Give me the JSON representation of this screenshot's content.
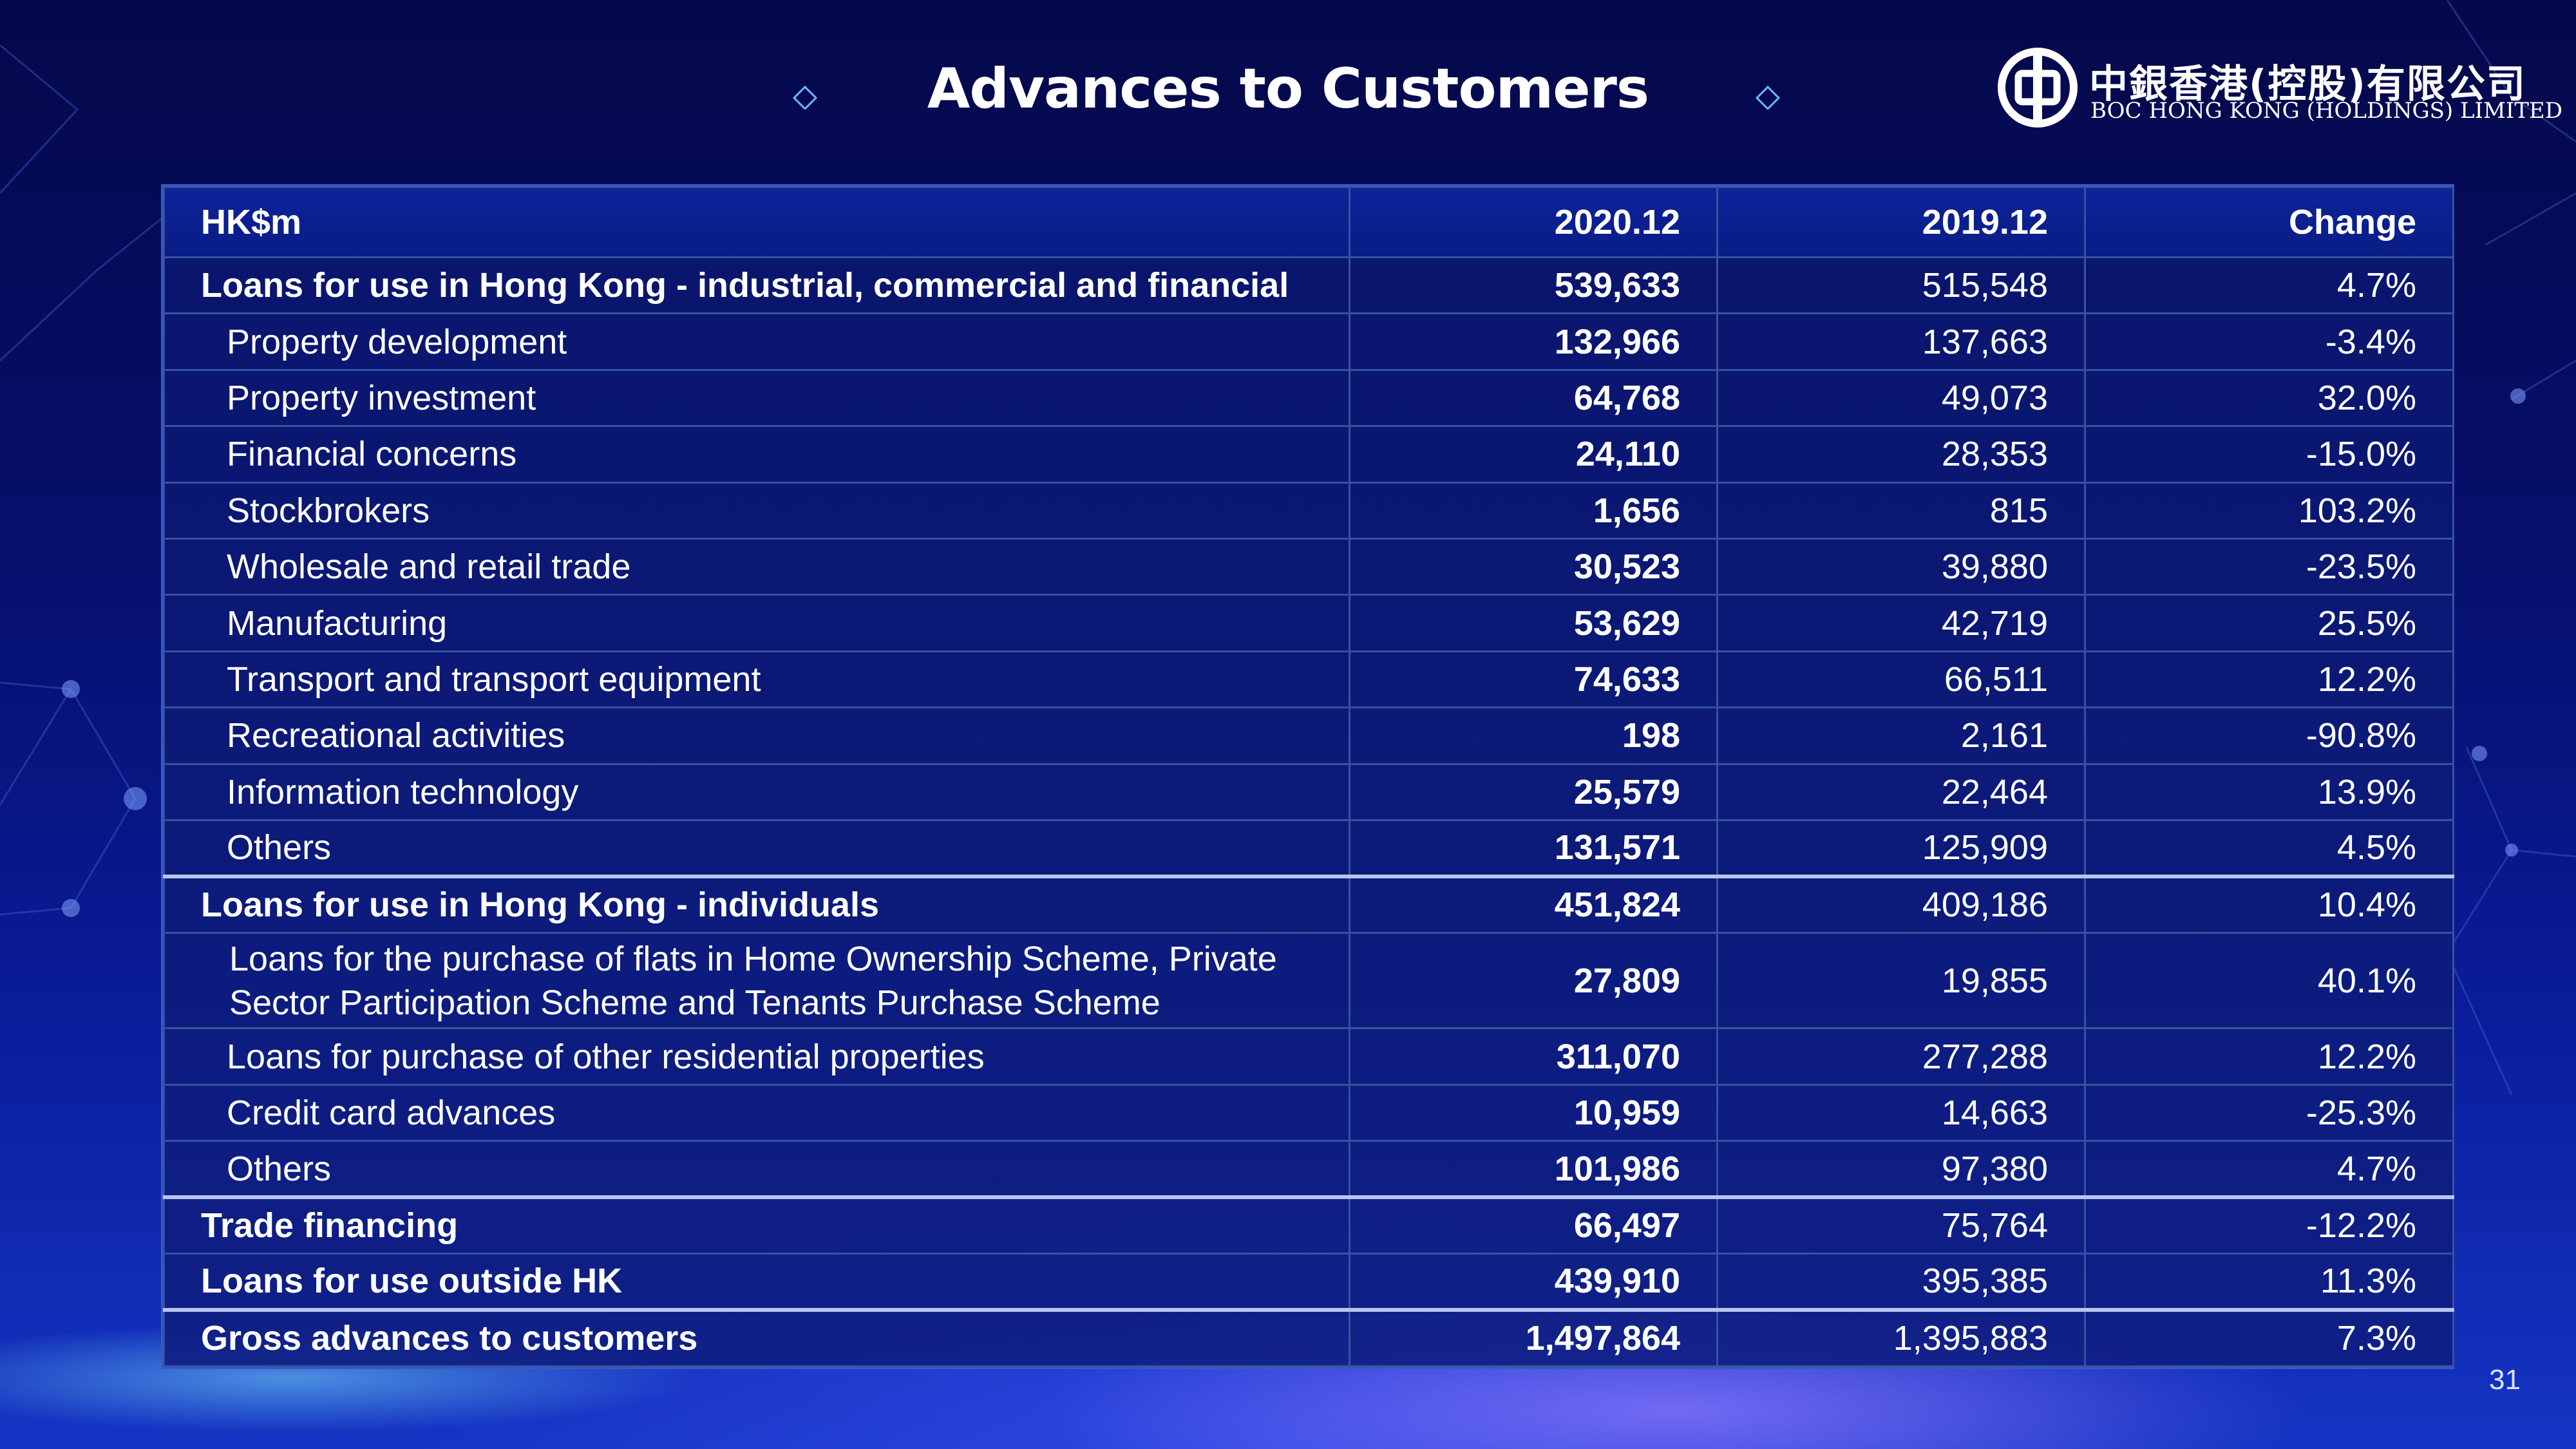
{
  "slide": {
    "title": "Advances to Customers",
    "page_number": "31"
  },
  "logo": {
    "chinese_name": "中銀香港(控股)有限公司",
    "english_name": "BOC HONG KONG (HOLDINGS) LIMITED"
  },
  "colors": {
    "background_top": "#05084a",
    "background_bottom": "#1535c4",
    "table_border": "#35539c",
    "section_separator": "#b7c6ee",
    "text": "#ffffff"
  },
  "table": {
    "headers": [
      "HK$m",
      "2020.12",
      "2019.12",
      "Change"
    ],
    "rows": [
      {
        "label": "Loans for use in Hong Kong - industrial, commercial and financial",
        "v2020": "539,633",
        "v2019": "515,548",
        "change": "4.7%"
      },
      {
        "label": "Property development",
        "v2020": "132,966",
        "v2019": "137,663",
        "change": "-3.4%"
      },
      {
        "label": "Property investment",
        "v2020": "64,768",
        "v2019": "49,073",
        "change": "32.0%"
      },
      {
        "label": "Financial concerns",
        "v2020": "24,110",
        "v2019": "28,353",
        "change": "-15.0%"
      },
      {
        "label": "Stockbrokers",
        "v2020": "1,656",
        "v2019": "815",
        "change": "103.2%"
      },
      {
        "label": "Wholesale and retail trade",
        "v2020": "30,523",
        "v2019": "39,880",
        "change": "-23.5%"
      },
      {
        "label": "Manufacturing",
        "v2020": "53,629",
        "v2019": "42,719",
        "change": "25.5%"
      },
      {
        "label": "Transport and transport equipment",
        "v2020": "74,633",
        "v2019": "66,511",
        "change": "12.2%"
      },
      {
        "label": "Recreational activities",
        "v2020": "198",
        "v2019": "2,161",
        "change": "-90.8%"
      },
      {
        "label": "Information technology",
        "v2020": "25,579",
        "v2019": "22,464",
        "change": "13.9%"
      },
      {
        "label": "Others",
        "v2020": "131,571",
        "v2019": "125,909",
        "change": "4.5%"
      },
      {
        "label": "Loans for use in Hong Kong - individuals",
        "v2020": "451,824",
        "v2019": "409,186",
        "change": "10.4%"
      },
      {
        "label": "Loans for the purchase of flats in Home Ownership Scheme, Private Sector Participation Scheme and Tenants Purchase Scheme",
        "v2020": "27,809",
        "v2019": "19,855",
        "change": "40.1%"
      },
      {
        "label": "Loans for purchase of other residential properties",
        "v2020": "311,070",
        "v2019": "277,288",
        "change": "12.2%"
      },
      {
        "label": "Credit card advances",
        "v2020": "10,959",
        "v2019": "14,663",
        "change": "-25.3%"
      },
      {
        "label": "Others",
        "v2020": "101,986",
        "v2019": "97,380",
        "change": "4.7%"
      },
      {
        "label": "Trade financing",
        "v2020": "66,497",
        "v2019": "75,764",
        "change": "-12.2%"
      },
      {
        "label": "Loans for use outside HK",
        "v2020": "439,910",
        "v2019": "395,385",
        "change": "11.3%"
      },
      {
        "label": "Gross advances to customers",
        "v2020": "1,497,864",
        "v2019": "1,395,883",
        "change": "7.3%"
      }
    ]
  }
}
